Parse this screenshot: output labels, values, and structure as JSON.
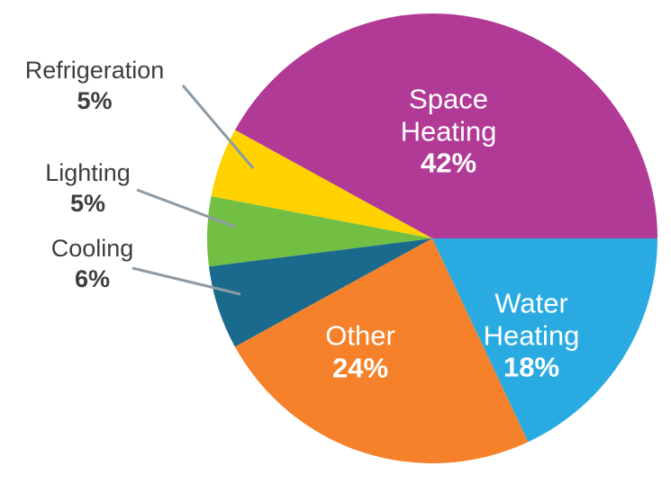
{
  "chart_data": {
    "type": "pie",
    "title": "",
    "unit": "%",
    "start_angle_deg": 0,
    "direction": "counterclockwise",
    "slices": [
      {
        "name": "Space Heating",
        "value": 42,
        "pct_label": "42%",
        "color": "#b23a97",
        "label_position": "inside"
      },
      {
        "name": "Refrigeration",
        "value": 5,
        "pct_label": "5%",
        "color": "#ffd200",
        "label_position": "outside"
      },
      {
        "name": "Lighting",
        "value": 5,
        "pct_label": "5%",
        "color": "#72bf44",
        "label_position": "outside"
      },
      {
        "name": "Cooling",
        "value": 6,
        "pct_label": "6%",
        "color": "#1a6a8d",
        "label_position": "outside"
      },
      {
        "name": "Other",
        "value": 24,
        "pct_label": "24%",
        "color": "#f5822a",
        "label_position": "inside"
      },
      {
        "name": "Water Heating",
        "value": 18,
        "pct_label": "18%",
        "color": "#29abe2",
        "label_position": "inside"
      }
    ],
    "leader_line_color": "#8d9aa4",
    "label_text_color_outside": "#3e3e3f",
    "label_text_color_inside": "#ffffff",
    "legend": "none",
    "grid": false
  }
}
